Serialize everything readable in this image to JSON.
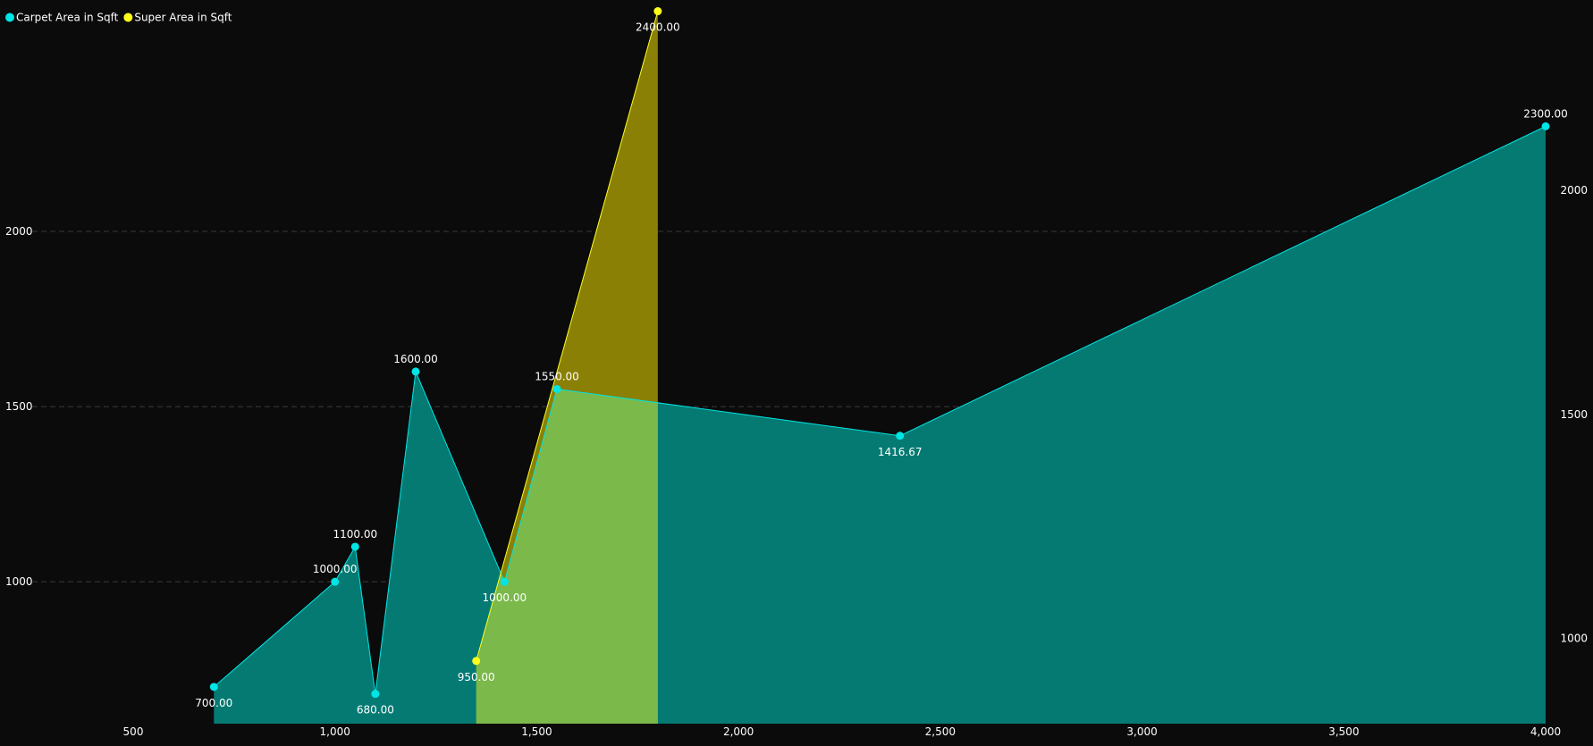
{
  "chart_data": {
    "type": "area",
    "title": "",
    "xlabel": "",
    "ylabel": "",
    "xlim": [
      500,
      4000
    ],
    "x_ticks": [
      500,
      1000,
      1500,
      2000,
      2500,
      3000,
      3500,
      4000
    ],
    "x_tick_labels": [
      "500",
      "1,000",
      "1,500",
      "2,000",
      "2,500",
      "3,000",
      "3,500",
      "4,000"
    ],
    "left_axis": {
      "ylim": [
        595,
        2635
      ],
      "ticks": [
        1000,
        1500,
        2000
      ],
      "tick_labels": [
        "1000",
        "1500",
        "2000"
      ]
    },
    "right_axis": {
      "ylim": [
        810,
        2405
      ],
      "ticks": [
        1000,
        1500,
        2000
      ],
      "tick_labels": [
        "1000",
        "1500",
        "2000"
      ]
    },
    "grid": "horizontal-dashed",
    "legend_position": "top-left",
    "series": [
      {
        "name": "Carpet Area in Sqft",
        "color": "#00e5e5",
        "fill": "#057a73",
        "axis": "left",
        "points": [
          {
            "x": 700,
            "y": 700,
            "label": "700.00",
            "label_pos": "below"
          },
          {
            "x": 1000,
            "y": 1000,
            "label": "1000.00",
            "label_pos": "above"
          },
          {
            "x": 1050,
            "y": 1100,
            "label": "1100.00",
            "label_pos": "above"
          },
          {
            "x": 1100,
            "y": 680,
            "label": "680.00",
            "label_pos": "below"
          },
          {
            "x": 1200,
            "y": 1600,
            "label": "1600.00",
            "label_pos": "above"
          },
          {
            "x": 1420,
            "y": 1000,
            "label": "1000.00",
            "label_pos": "below"
          },
          {
            "x": 1550,
            "y": 1550,
            "label": "1550.00",
            "label_pos": "above"
          },
          {
            "x": 2400,
            "y": 1416.67,
            "label": "1416.67",
            "label_pos": "below"
          },
          {
            "x": 4000,
            "y": 2300,
            "label": "2300.00",
            "label_pos": "above"
          }
        ]
      },
      {
        "name": "Super Area in Sqft",
        "color": "#ffff1a",
        "fill": "#8a8005",
        "overlap_fill": "#7ab94a",
        "axis": "right",
        "points": [
          {
            "x": 1350,
            "y": 950,
            "label": "950.00",
            "label_pos": "below"
          },
          {
            "x": 1800,
            "y": 2400,
            "label": "2400.00",
            "label_pos": "below"
          }
        ]
      }
    ]
  }
}
